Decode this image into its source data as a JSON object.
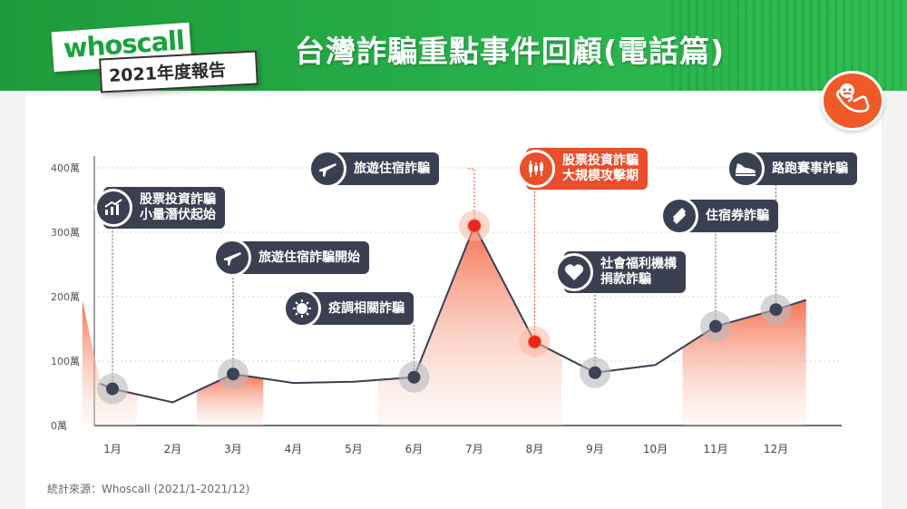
{
  "brand": {
    "logo": "whoscall",
    "report": "2021年度報告"
  },
  "title": "台灣詐騙重點事件回顧(電話篇)",
  "header_icon": "phone-scam-icon",
  "source": "統計來源：Whoscall (2021/1-2021/12)",
  "colors": {
    "header_green": "#27b04a",
    "line": "#3a3f4f",
    "area": "#f46a48",
    "callout": "#3a4052",
    "highlight": "#e8402a"
  },
  "chart_data": {
    "type": "line",
    "categories": [
      "1月",
      "2月",
      "3月",
      "4月",
      "5月",
      "6月",
      "7月",
      "8月",
      "9月",
      "10月",
      "11月",
      "12月"
    ],
    "x_edges": [
      0.8,
      12.5
    ],
    "y_edges": [
      65,
      195
    ],
    "values": [
      57,
      36,
      80,
      66,
      68,
      75,
      310,
      130,
      82,
      94,
      154,
      180
    ],
    "ylim": [
      0,
      400
    ],
    "yticks": [
      0,
      100,
      200,
      300,
      400
    ],
    "ytick_labels": [
      "0萬",
      "100萬",
      "200萬",
      "300萬",
      "400萬"
    ],
    "grid": true,
    "highlighted_points": [
      "7月",
      "8月"
    ],
    "annotations": [
      {
        "month": "1月",
        "text": [
          "股票投資詐騙",
          "小量潛伏起始"
        ],
        "icon": "chart-up-icon"
      },
      {
        "month": "3月",
        "text": [
          "旅遊住宿詐騙開始"
        ],
        "icon": "airplane-icon"
      },
      {
        "month": "6月",
        "text": [
          "疫調相關詐騙"
        ],
        "icon": "virus-icon"
      },
      {
        "month": "7月",
        "text": [
          "旅遊住宿詐騙"
        ],
        "icon": "airplane-icon"
      },
      {
        "month": "8月",
        "text": [
          "股票投資詐騙",
          "大規模攻擊期"
        ],
        "icon": "candlestick-icon"
      },
      {
        "month": "9月",
        "text": [
          "社會福利機構",
          "捐款詐騙"
        ],
        "icon": "heart-icon"
      },
      {
        "month": "11月",
        "text": [
          "住宿券詐騙"
        ],
        "icon": "ticket-icon"
      },
      {
        "month": "12月",
        "text": [
          "路跑賽事詐騙"
        ],
        "icon": "shoe-icon"
      }
    ]
  }
}
